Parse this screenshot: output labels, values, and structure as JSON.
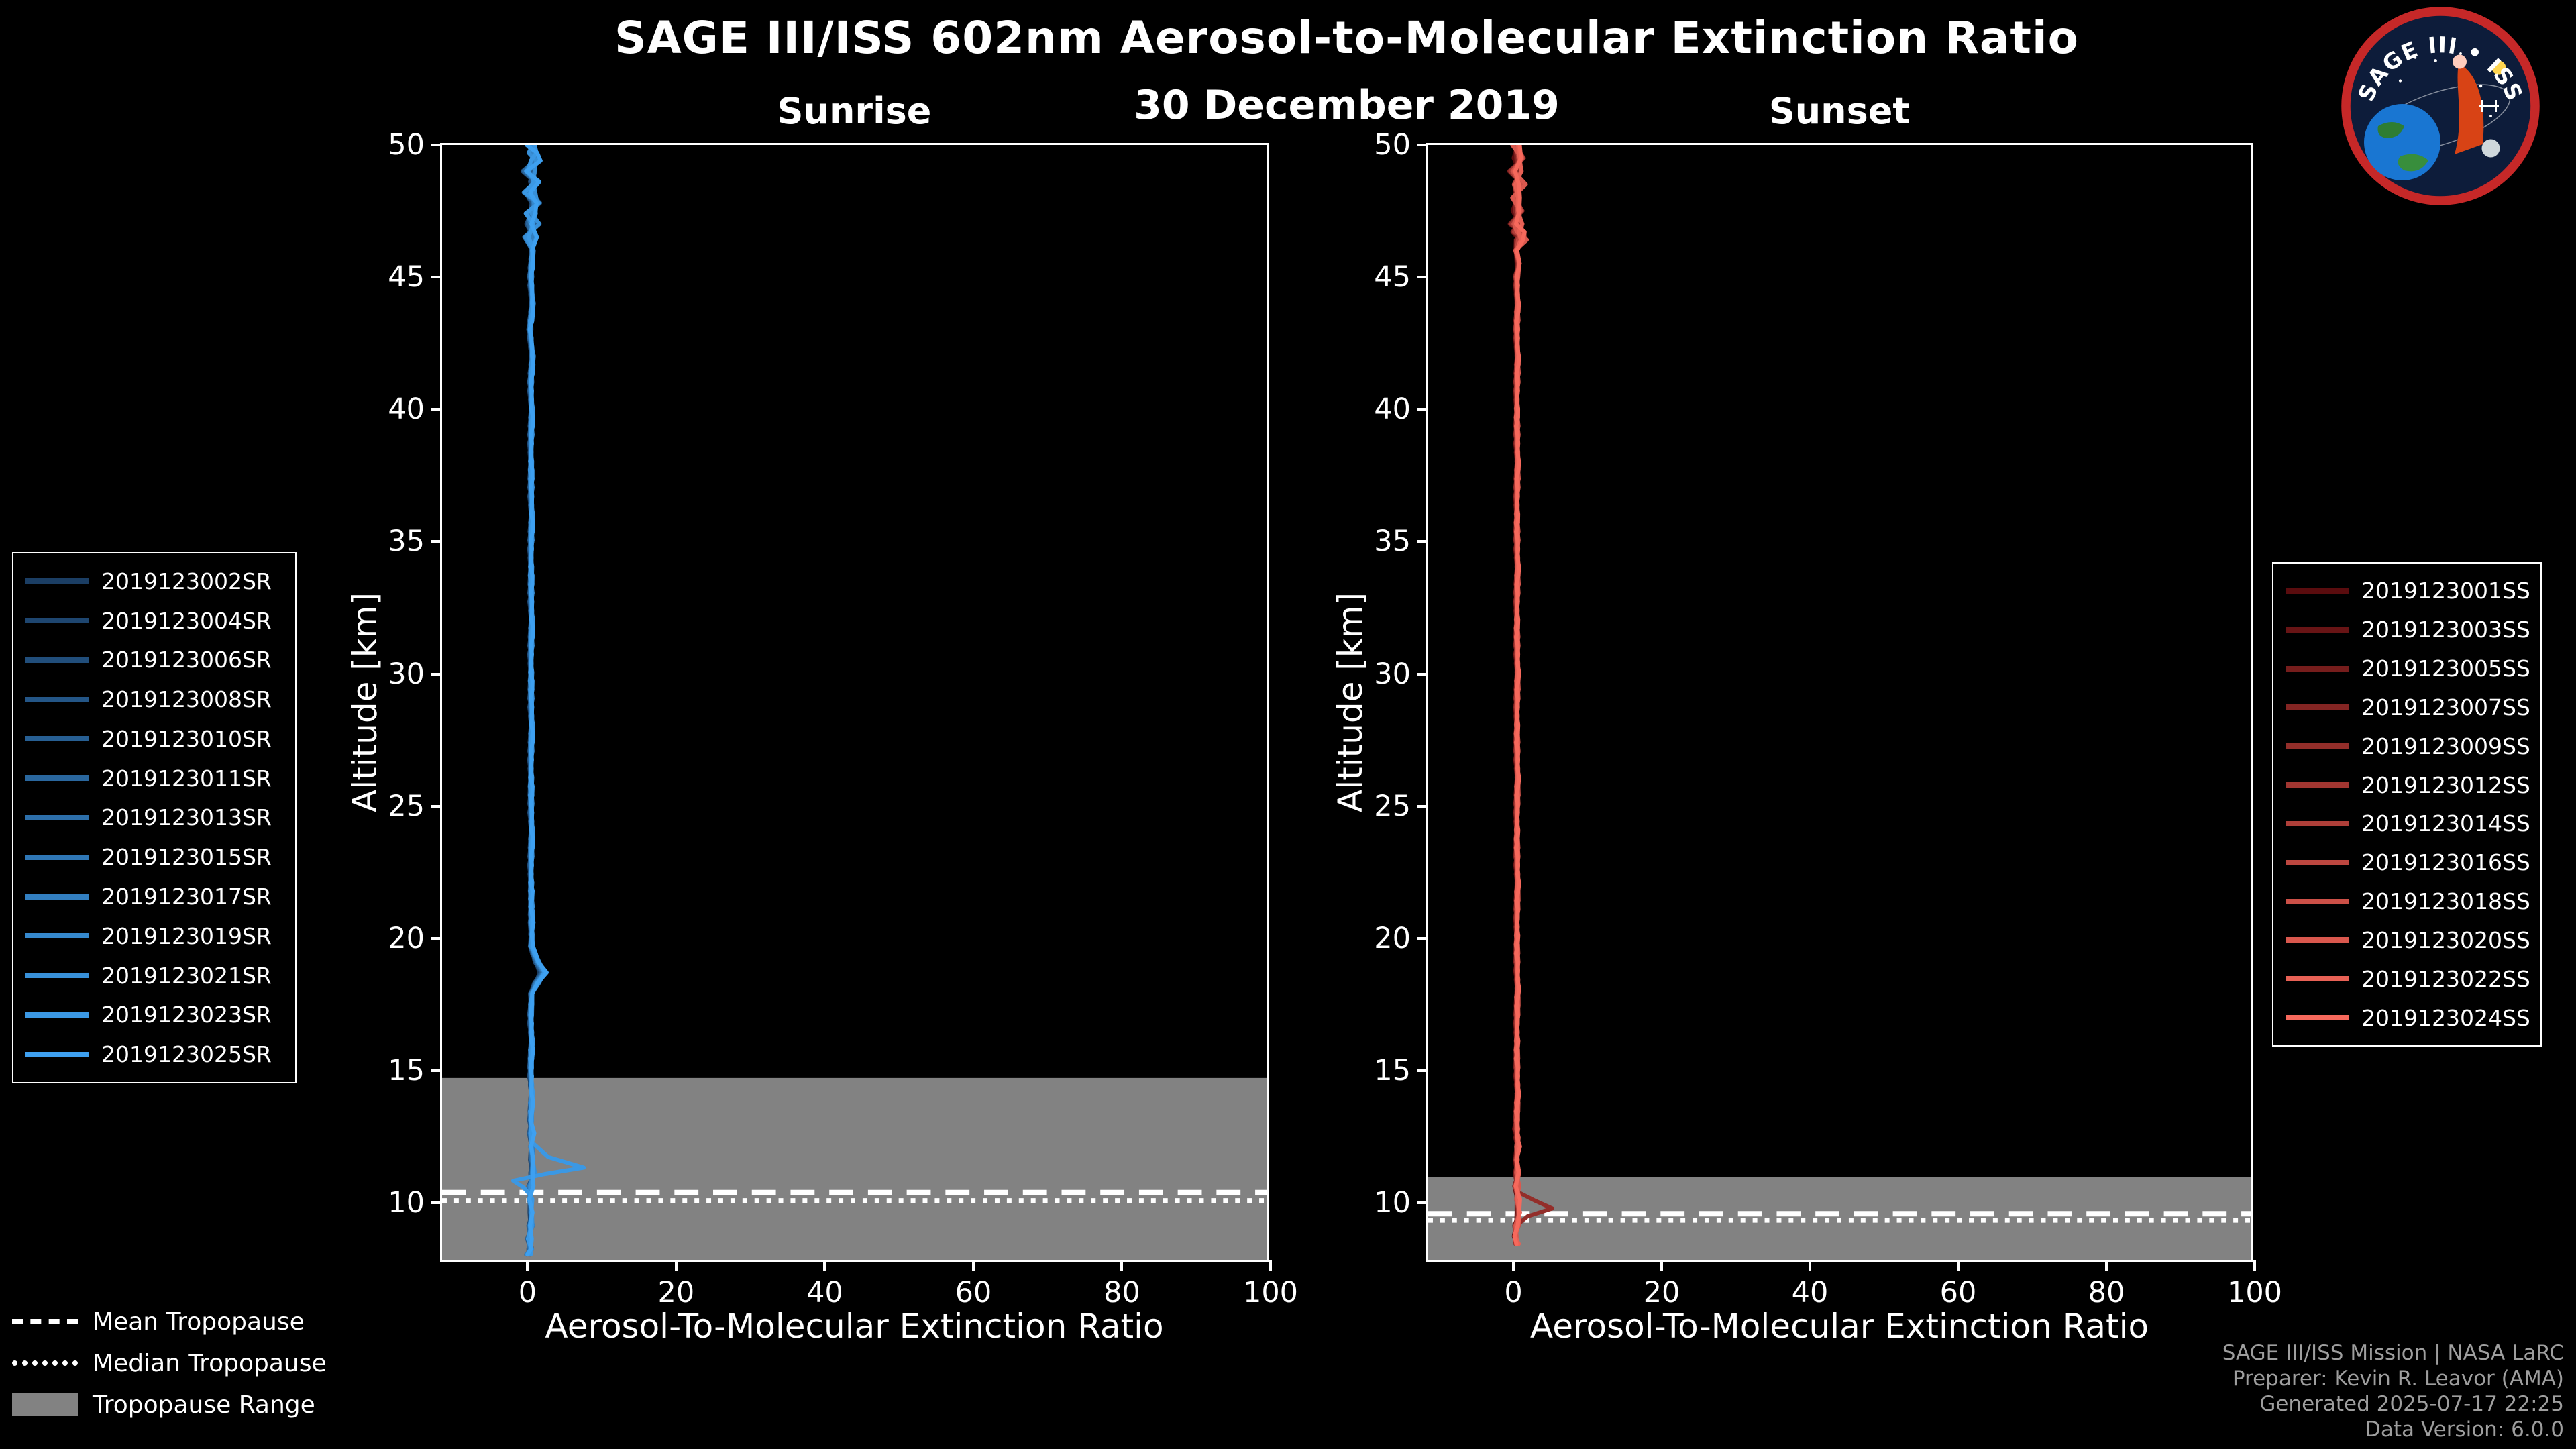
{
  "title": "SAGE III/ISS 602nm Aerosol-to-Molecular Extinction Ratio",
  "subtitle": "30 December 2019",
  "logo": {
    "title": "SAGE III • ISS"
  },
  "footer": {
    "lines": [
      "SAGE III/ISS Mission | NASA LaRC",
      "Preparer: Kevin R. Leavor (AMA)",
      "Generated 2025-07-17 22:25",
      "Data Version: 6.0.0"
    ]
  },
  "trop_legend": {
    "items": [
      {
        "label": "Mean Tropopause",
        "style": "dashed"
      },
      {
        "label": "Median Tropopause",
        "style": "dotted"
      },
      {
        "label": "Tropopause Range",
        "style": "band"
      }
    ]
  },
  "colors": {
    "background": "#000000",
    "axis": "#ffffff",
    "tropopause_band": "#828282",
    "footer_text": "#9e9e9e"
  },
  "chart_data": [
    {
      "type": "line",
      "title": "Sunrise",
      "xlabel": "Aerosol-To-Molecular Extinction Ratio",
      "ylabel": "Altitude [km]",
      "xlim": [
        -11.5,
        100
      ],
      "ylim": [
        7.7,
        50
      ],
      "xticks": [
        0,
        20,
        40,
        60,
        80,
        100
      ],
      "yticks": [
        10,
        15,
        20,
        25,
        30,
        35,
        40,
        45,
        50
      ],
      "grid": false,
      "tropopause": {
        "mean": 10.25,
        "median": 9.95,
        "range_top": 14.6,
        "range_bottom": 7.7
      },
      "series": [
        {
          "name": "2019123002SR",
          "color": "#1b3e64"
        },
        {
          "name": "2019123004SR",
          "color": "#1e4670"
        },
        {
          "name": "2019123006SR",
          "color": "#214e7b"
        },
        {
          "name": "2019123008SR",
          "color": "#245687"
        },
        {
          "name": "2019123010SR",
          "color": "#275f93"
        },
        {
          "name": "2019123011SR",
          "color": "#2a679e"
        },
        {
          "name": "2019123013SR",
          "color": "#2d6faa"
        },
        {
          "name": "2019123015SR",
          "color": "#2f77b6"
        },
        {
          "name": "2019123017SR",
          "color": "#327fc1"
        },
        {
          "name": "2019123019SR",
          "color": "#3588cd"
        },
        {
          "name": "2019123021SR",
          "color": "#3890d9"
        },
        {
          "name": "2019123023SR",
          "color": "#3b98e4"
        },
        {
          "name": "2019123025SR",
          "color": "#3ea0f0"
        }
      ],
      "profile": [
        [
          50,
          0.5
        ],
        [
          49.4,
          1.1
        ],
        [
          49,
          0.3
        ],
        [
          48.6,
          1.0
        ],
        [
          48.2,
          0.4
        ],
        [
          47.8,
          1.2
        ],
        [
          47.4,
          0.5
        ],
        [
          47,
          0.9
        ],
        [
          46.5,
          0.4
        ],
        [
          46,
          0.7
        ],
        [
          45,
          0.5
        ],
        [
          44,
          0.7
        ],
        [
          43,
          0.4
        ],
        [
          42,
          0.7
        ],
        [
          41,
          0.5
        ],
        [
          40,
          0.6
        ],
        [
          38,
          0.5
        ],
        [
          36,
          0.6
        ],
        [
          34,
          0.5
        ],
        [
          32,
          0.6
        ],
        [
          30,
          0.5
        ],
        [
          28,
          0.6
        ],
        [
          26,
          0.5
        ],
        [
          24,
          0.6
        ],
        [
          22,
          0.5
        ],
        [
          20.5,
          0.6
        ],
        [
          19.6,
          0.6
        ],
        [
          19.0,
          1.4
        ],
        [
          18.6,
          2.2
        ],
        [
          18.2,
          1.3
        ],
        [
          17.8,
          0.6
        ],
        [
          17,
          0.5
        ],
        [
          16,
          0.6
        ],
        [
          15,
          0.5
        ],
        [
          14,
          0.6
        ],
        [
          13,
          0.5
        ],
        [
          12.5,
          0.6
        ],
        [
          12,
          0.6
        ],
        [
          11.5,
          0.7
        ],
        [
          11,
          0.8
        ],
        [
          10.5,
          0.5
        ],
        [
          10,
          0.4
        ],
        [
          9.5,
          0.6
        ],
        [
          9,
          0.5
        ],
        [
          8.5,
          0.3
        ],
        [
          8.1,
          0.5
        ],
        [
          7.9,
          0.2
        ]
      ],
      "spike": {
        "series_index": 11,
        "points": [
          [
            12.2,
            0.6
          ],
          [
            11.6,
            2.5
          ],
          [
            11.2,
            6.8
          ],
          [
            10.95,
            2.0
          ],
          [
            10.7,
            -1.8
          ],
          [
            10.45,
            -0.3
          ],
          [
            10.2,
            0.4
          ]
        ]
      }
    },
    {
      "type": "line",
      "title": "Sunset",
      "xlabel": "Aerosol-To-Molecular Extinction Ratio",
      "ylabel": "Altitude [km]",
      "xlim": [
        -11.5,
        100
      ],
      "ylim": [
        7.7,
        50
      ],
      "xticks": [
        0,
        20,
        40,
        60,
        80,
        100
      ],
      "yticks": [
        10,
        15,
        20,
        25,
        30,
        35,
        40,
        45,
        50
      ],
      "grid": false,
      "tropopause": {
        "mean": 9.45,
        "median": 9.2,
        "range_top": 10.85,
        "range_bottom": 7.7
      },
      "series": [
        {
          "name": "2019123001SS",
          "color": "#5a0c0e"
        },
        {
          "name": "2019123003SS",
          "color": "#681415"
        },
        {
          "name": "2019123005SS",
          "color": "#761d1c"
        },
        {
          "name": "2019123007SS",
          "color": "#842523"
        },
        {
          "name": "2019123009SS",
          "color": "#932e2a"
        },
        {
          "name": "2019123012SS",
          "color": "#a13631"
        },
        {
          "name": "2019123014SS",
          "color": "#af3f39"
        },
        {
          "name": "2019123016SS",
          "color": "#bd4740"
        },
        {
          "name": "2019123018SS",
          "color": "#cc5047"
        },
        {
          "name": "2019123020SS",
          "color": "#da584e"
        },
        {
          "name": "2019123022SS",
          "color": "#e86155"
        },
        {
          "name": "2019123024SS",
          "color": "#f6695c"
        }
      ],
      "profile": [
        [
          50,
          0.4
        ],
        [
          49.5,
          1.0
        ],
        [
          49,
          0.4
        ],
        [
          48.5,
          0.9
        ],
        [
          48,
          0.4
        ],
        [
          47.5,
          0.8
        ],
        [
          47,
          0.5
        ],
        [
          46.4,
          1.3
        ],
        [
          46,
          0.4
        ],
        [
          45.5,
          0.8
        ],
        [
          45,
          0.5
        ],
        [
          44,
          0.6
        ],
        [
          43,
          0.5
        ],
        [
          42,
          0.6
        ],
        [
          40,
          0.5
        ],
        [
          38,
          0.6
        ],
        [
          36,
          0.5
        ],
        [
          34,
          0.6
        ],
        [
          32,
          0.5
        ],
        [
          30,
          0.6
        ],
        [
          28,
          0.5
        ],
        [
          26,
          0.6
        ],
        [
          24,
          0.5
        ],
        [
          22,
          0.6
        ],
        [
          20,
          0.5
        ],
        [
          18,
          0.6
        ],
        [
          16,
          0.5
        ],
        [
          14,
          0.6
        ],
        [
          13,
          0.5
        ],
        [
          12,
          0.6
        ],
        [
          11.5,
          0.5
        ],
        [
          11,
          0.6
        ],
        [
          10.5,
          0.5
        ],
        [
          10,
          0.6
        ],
        [
          9.5,
          0.8
        ],
        [
          9,
          0.5
        ],
        [
          8.6,
          0.3
        ],
        [
          8.3,
          0.5
        ]
      ],
      "spike": {
        "series_index": 4,
        "points": [
          [
            10.3,
            0.5
          ],
          [
            9.95,
            3.0
          ],
          [
            9.65,
            6.0
          ],
          [
            9.35,
            2.2
          ],
          [
            9.05,
            0.4
          ]
        ]
      }
    }
  ]
}
